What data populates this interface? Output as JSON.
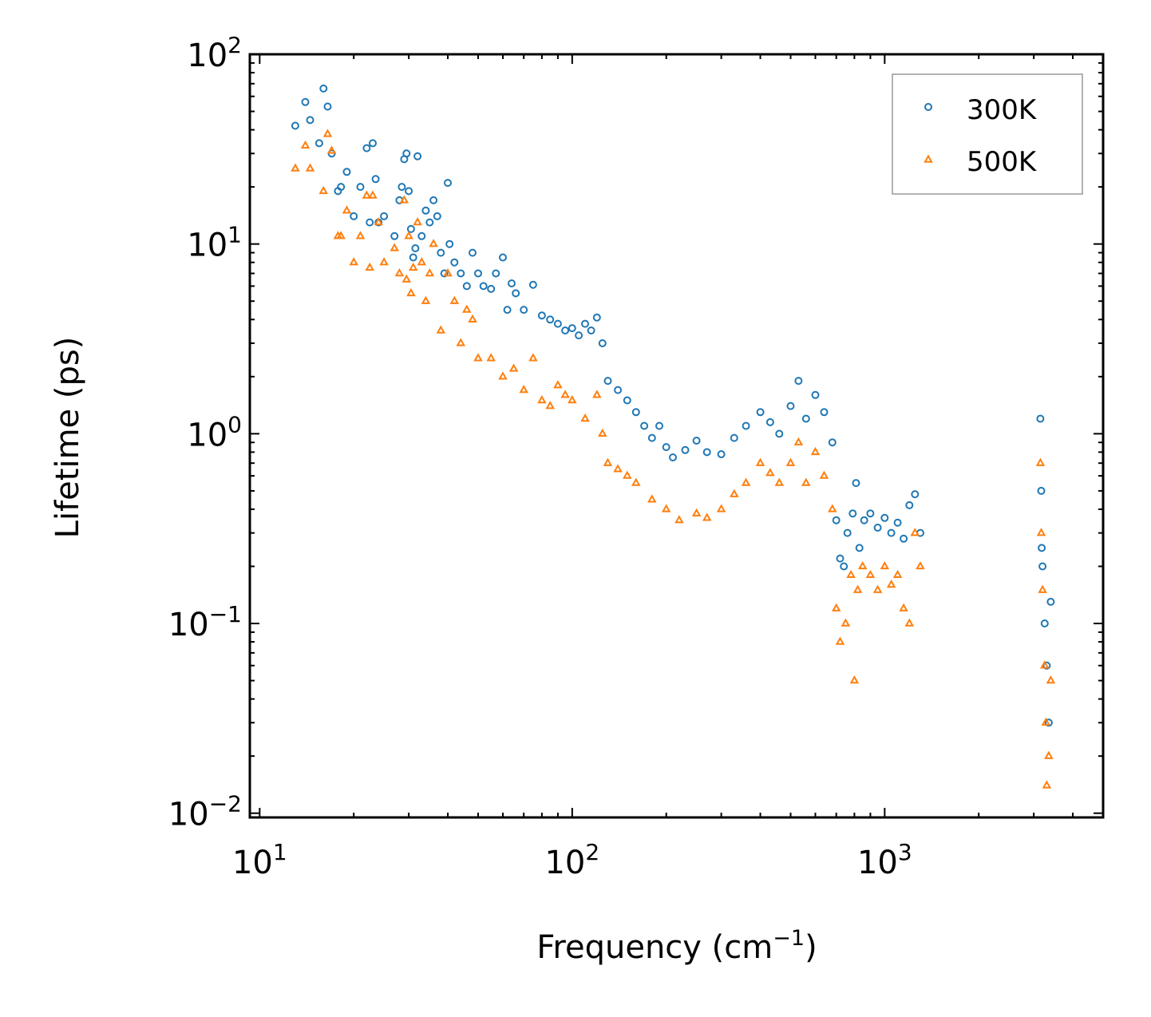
{
  "chart_data": {
    "type": "scatter",
    "title": "",
    "xlabel": "Frequency (cm",
    "xlabel_sup": "−1",
    "xlabel_close": ")",
    "ylabel": "Lifetime (ps)",
    "xscale": "log",
    "yscale": "log",
    "xlim": [
      9.3,
      5000
    ],
    "ylim": [
      0.0095,
      100
    ],
    "x_ticks": [
      {
        "value": 10,
        "base": "10",
        "exp": "1"
      },
      {
        "value": 100,
        "base": "10",
        "exp": "2"
      },
      {
        "value": 1000,
        "base": "10",
        "exp": "3"
      }
    ],
    "y_ticks": [
      {
        "value": 0.01,
        "base": "10",
        "exp": "−2"
      },
      {
        "value": 0.1,
        "base": "10",
        "exp": "−1"
      },
      {
        "value": 1,
        "base": "10",
        "exp": "0"
      },
      {
        "value": 10,
        "base": "10",
        "exp": "1"
      },
      {
        "value": 100,
        "base": "10",
        "exp": "2"
      }
    ],
    "legend_position": "top-right",
    "series": [
      {
        "name": "300K",
        "marker": "circle",
        "color": "#1f77b4",
        "points": [
          [
            13,
            42
          ],
          [
            14,
            56
          ],
          [
            14.5,
            45
          ],
          [
            15.5,
            34
          ],
          [
            16,
            66
          ],
          [
            16.5,
            53
          ],
          [
            17,
            30
          ],
          [
            17.8,
            19
          ],
          [
            18.2,
            20
          ],
          [
            19,
            24
          ],
          [
            20,
            14
          ],
          [
            21,
            20
          ],
          [
            22,
            32
          ],
          [
            22.5,
            13
          ],
          [
            23,
            34
          ],
          [
            23.5,
            22
          ],
          [
            24,
            13
          ],
          [
            25,
            14
          ],
          [
            27,
            11
          ],
          [
            28,
            17
          ],
          [
            28.5,
            20
          ],
          [
            29,
            28
          ],
          [
            29.5,
            30
          ],
          [
            30,
            19
          ],
          [
            30.5,
            12
          ],
          [
            31,
            8.5
          ],
          [
            31.5,
            9.5
          ],
          [
            32,
            29
          ],
          [
            33,
            11
          ],
          [
            34,
            15
          ],
          [
            35,
            13
          ],
          [
            36,
            17
          ],
          [
            37,
            14
          ],
          [
            38,
            9
          ],
          [
            39,
            7
          ],
          [
            40,
            21
          ],
          [
            40.5,
            10
          ],
          [
            42,
            8
          ],
          [
            44,
            7
          ],
          [
            46,
            6
          ],
          [
            48,
            9
          ],
          [
            50,
            7
          ],
          [
            52,
            6
          ],
          [
            55,
            5.8
          ],
          [
            57,
            7
          ],
          [
            60,
            8.5
          ],
          [
            62,
            4.5
          ],
          [
            64,
            6.2
          ],
          [
            66,
            5.5
          ],
          [
            70,
            4.5
          ],
          [
            75,
            6.1
          ],
          [
            80,
            4.2
          ],
          [
            85,
            4.0
          ],
          [
            90,
            3.8
          ],
          [
            95,
            3.5
          ],
          [
            100,
            3.6
          ],
          [
            105,
            3.3
          ],
          [
            110,
            3.8
          ],
          [
            115,
            3.5
          ],
          [
            120,
            4.1
          ],
          [
            125,
            3.0
          ],
          [
            130,
            1.9
          ],
          [
            140,
            1.7
          ],
          [
            150,
            1.5
          ],
          [
            160,
            1.3
          ],
          [
            170,
            1.1
          ],
          [
            180,
            0.95
          ],
          [
            190,
            1.1
          ],
          [
            200,
            0.85
          ],
          [
            210,
            0.75
          ],
          [
            230,
            0.82
          ],
          [
            250,
            0.92
          ],
          [
            270,
            0.8
          ],
          [
            300,
            0.78
          ],
          [
            330,
            0.95
          ],
          [
            360,
            1.1
          ],
          [
            400,
            1.3
          ],
          [
            430,
            1.15
          ],
          [
            460,
            1.0
          ],
          [
            500,
            1.4
          ],
          [
            530,
            1.9
          ],
          [
            560,
            1.2
          ],
          [
            600,
            1.6
          ],
          [
            640,
            1.3
          ],
          [
            680,
            0.9
          ],
          [
            700,
            0.35
          ],
          [
            720,
            0.22
          ],
          [
            740,
            0.2
          ],
          [
            760,
            0.3
          ],
          [
            790,
            0.38
          ],
          [
            810,
            0.55
          ],
          [
            830,
            0.25
          ],
          [
            860,
            0.35
          ],
          [
            900,
            0.38
          ],
          [
            950,
            0.32
          ],
          [
            1000,
            0.36
          ],
          [
            1050,
            0.3
          ],
          [
            1100,
            0.34
          ],
          [
            1150,
            0.28
          ],
          [
            1200,
            0.42
          ],
          [
            1250,
            0.48
          ],
          [
            1300,
            0.3
          ],
          [
            3150,
            1.2
          ],
          [
            3170,
            0.5
          ],
          [
            3180,
            0.25
          ],
          [
            3200,
            0.2
          ],
          [
            3250,
            0.1
          ],
          [
            3300,
            0.06
          ],
          [
            3350,
            0.03
          ],
          [
            3400,
            0.13
          ]
        ]
      },
      {
        "name": "500K",
        "marker": "triangle",
        "color": "#ff7f0e",
        "points": [
          [
            13,
            25
          ],
          [
            14,
            33
          ],
          [
            14.5,
            25
          ],
          [
            16,
            19
          ],
          [
            16.5,
            38
          ],
          [
            17,
            31
          ],
          [
            17.8,
            11
          ],
          [
            18.2,
            11
          ],
          [
            19,
            15
          ],
          [
            20,
            8
          ],
          [
            21,
            11
          ],
          [
            22,
            18
          ],
          [
            22.5,
            7.5
          ],
          [
            23,
            18
          ],
          [
            24,
            13
          ],
          [
            25,
            8
          ],
          [
            27,
            9.5
          ],
          [
            28,
            7
          ],
          [
            29,
            17
          ],
          [
            29.5,
            6.5
          ],
          [
            30,
            11
          ],
          [
            30.5,
            5.5
          ],
          [
            31,
            7.5
          ],
          [
            32,
            13
          ],
          [
            33,
            8
          ],
          [
            34,
            5
          ],
          [
            35,
            7
          ],
          [
            36,
            10
          ],
          [
            38,
            3.5
          ],
          [
            40,
            7
          ],
          [
            42,
            5
          ],
          [
            44,
            3
          ],
          [
            46,
            4.5
          ],
          [
            48,
            4
          ],
          [
            50,
            2.5
          ],
          [
            55,
            2.5
          ],
          [
            60,
            2.0
          ],
          [
            65,
            2.2
          ],
          [
            70,
            1.7
          ],
          [
            75,
            2.5
          ],
          [
            80,
            1.5
          ],
          [
            85,
            1.4
          ],
          [
            90,
            1.8
          ],
          [
            95,
            1.6
          ],
          [
            100,
            1.5
          ],
          [
            110,
            1.2
          ],
          [
            120,
            1.6
          ],
          [
            125,
            1.0
          ],
          [
            130,
            0.7
          ],
          [
            140,
            0.65
          ],
          [
            150,
            0.6
          ],
          [
            160,
            0.55
          ],
          [
            180,
            0.45
          ],
          [
            200,
            0.4
          ],
          [
            220,
            0.35
          ],
          [
            250,
            0.38
          ],
          [
            270,
            0.36
          ],
          [
            300,
            0.4
          ],
          [
            330,
            0.48
          ],
          [
            360,
            0.55
          ],
          [
            400,
            0.7
          ],
          [
            430,
            0.62
          ],
          [
            460,
            0.55
          ],
          [
            500,
            0.7
          ],
          [
            530,
            0.9
          ],
          [
            560,
            0.55
          ],
          [
            600,
            0.8
          ],
          [
            640,
            0.6
          ],
          [
            680,
            0.4
          ],
          [
            700,
            0.12
          ],
          [
            720,
            0.08
          ],
          [
            750,
            0.1
          ],
          [
            780,
            0.18
          ],
          [
            800,
            0.05
          ],
          [
            820,
            0.15
          ],
          [
            850,
            0.2
          ],
          [
            900,
            0.18
          ],
          [
            950,
            0.15
          ],
          [
            1000,
            0.2
          ],
          [
            1050,
            0.16
          ],
          [
            1100,
            0.18
          ],
          [
            1150,
            0.12
          ],
          [
            1200,
            0.1
          ],
          [
            1250,
            0.3
          ],
          [
            1300,
            0.2
          ],
          [
            3150,
            0.7
          ],
          [
            3170,
            0.3
          ],
          [
            3200,
            0.15
          ],
          [
            3250,
            0.06
          ],
          [
            3280,
            0.03
          ],
          [
            3300,
            0.014
          ],
          [
            3350,
            0.02
          ],
          [
            3400,
            0.05
          ]
        ]
      }
    ]
  }
}
